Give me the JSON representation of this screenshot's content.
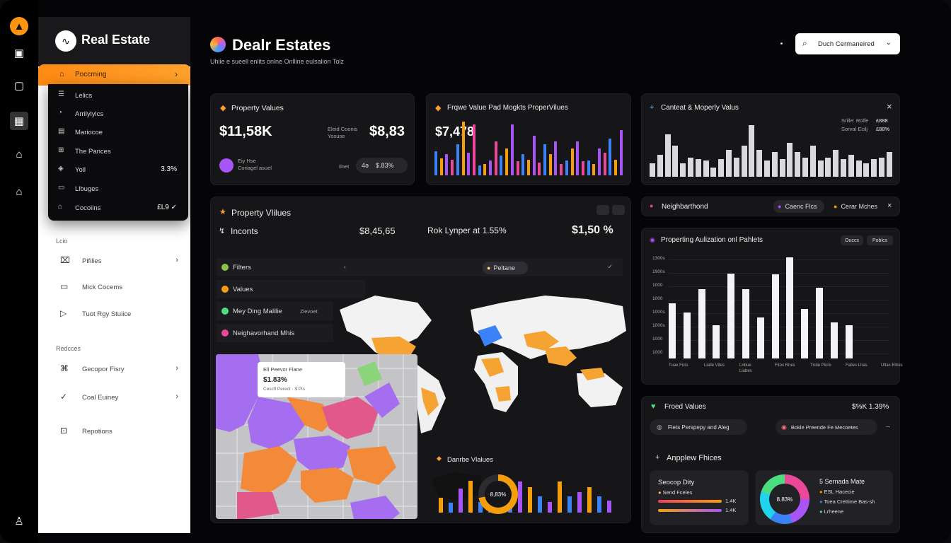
{
  "rail": {
    "icons": [
      "logo-icon",
      "user-card-icon",
      "tablet-icon",
      "calendar-icon",
      "home-icon",
      "house-signal-icon",
      "person-icon"
    ]
  },
  "sidebar": {
    "brand": "Real Estate",
    "active": {
      "label": "Poccrning",
      "chevron": "›"
    },
    "dropdown": [
      {
        "label": "Lelics",
        "value": ""
      },
      {
        "label": "Arrilylylcs",
        "value": ""
      },
      {
        "label": "Mariocoe",
        "value": ""
      },
      {
        "label": "The Pances",
        "value": ""
      },
      {
        "label": "Yoll",
        "value": "3.3%"
      },
      {
        "label": "Llbuges",
        "value": ""
      },
      {
        "label": "Cocoiins",
        "value": "£L9 ✓"
      }
    ],
    "section1": "Lcio",
    "items1": [
      {
        "label": "Pifilies",
        "chevron": "›"
      },
      {
        "label": "Mick Cocems",
        "chevron": ""
      },
      {
        "label": "Tuot Rgy Stuiice",
        "chevron": ""
      }
    ],
    "section2": "Redcces",
    "items2": [
      {
        "label": "Gecopor Fisry",
        "chevron": "›"
      },
      {
        "label": "Coal Euiney",
        "chevron": "›"
      },
      {
        "label": "Repotions",
        "chevron": ""
      }
    ]
  },
  "header": {
    "title": "Dealr Estates",
    "subtitle": "Uhiie e sueell enlits onlne Onlline eulsalion Tolz",
    "search": "Duch Cermaneired"
  },
  "card1": {
    "title": "Property Values",
    "value": "$11,58K",
    "label2": "Eleid Coonis Yosuse",
    "value2": "$8,83",
    "avatar_text": "Eiy Hse\nCoriagel asuel",
    "sub_label": "Ilnet",
    "pill_a": "4ə",
    "pill_b": "$.83%"
  },
  "card2": {
    "title": "Frqwe Value Pad Mogkts ProperVilues",
    "value": "$7,478",
    "bar_values": [
      42,
      30,
      38,
      28,
      55,
      95,
      40,
      90,
      18,
      20,
      26,
      60,
      35,
      48,
      90,
      25,
      38,
      28,
      70,
      22,
      55,
      38,
      60,
      20,
      26,
      48,
      60,
      25,
      26,
      20,
      48,
      40,
      65,
      28,
      80
    ],
    "bar_colors": [
      "#3b82f6",
      "#f59e0b",
      "#a855f7",
      "#ec4899"
    ]
  },
  "card3": {
    "title": "Canteat & Moperly Valus",
    "legend1": "Srille: Rolfe",
    "legend1v": "£888",
    "legend2": "Sorval Ecilj",
    "legend2v": "£88%",
    "bar_values": [
      15,
      25,
      48,
      35,
      15,
      22,
      20,
      18,
      10,
      20,
      30,
      22,
      35,
      58,
      30,
      18,
      28,
      20,
      38,
      28,
      22,
      35,
      18,
      22,
      30,
      20,
      25,
      18,
      15,
      20,
      22,
      28
    ]
  },
  "neighborhood": {
    "label": "Neighbarthond",
    "pill_a": "Caenc Flcs",
    "pill_b": "Cerar Mches"
  },
  "propvals": {
    "title": "Property Vlilues",
    "row_label": "Inconts",
    "row_v1": "$8,45,65",
    "row_mid": "Rok Lynper at 1.55%",
    "row_v2": "$1,50 %"
  },
  "filters": [
    {
      "label": "Filters",
      "color": "#8bc34a",
      "right": "Peltane",
      "right2": "✓"
    },
    {
      "label": "Values",
      "color": "#f59e0b",
      "right": "",
      "right2": ""
    },
    {
      "label": "Mey Ding Malilie",
      "color": "#4ade80",
      "right": "Zlevoet",
      "right2": ""
    },
    {
      "label": "Neighavorhand Mhis",
      "color": "#ec4899",
      "right": "",
      "right2": ""
    }
  ],
  "popup": {
    "title": "Ell Peevor Flane",
    "value": "$1.83%",
    "sub": "Cescfl Perect · $ Pls"
  },
  "donut_card": {
    "title": "Danrbe Vlalues",
    "center": "8,83%",
    "bar_values": [
      28,
      18,
      45,
      60,
      20,
      22,
      55,
      30,
      58,
      48,
      30,
      20,
      58,
      30,
      38,
      48,
      30,
      22
    ],
    "bar_colors": [
      "#f59e0b",
      "#3b82f6",
      "#a855f7"
    ]
  },
  "chart4": {
    "title": "Properting Aulization onl Pahlets",
    "btn1": "Ouccs",
    "btn2": "Poblcs",
    "yticks": [
      "1300s",
      "1900s",
      "1000",
      "1000",
      "1000s",
      "1000s",
      "1000",
      "1000"
    ],
    "xticks": [
      "Tuae Ficis",
      "Lialle Vites",
      "Lnbue Liubes",
      "Fitos Rnes",
      "Tistie Piicis",
      "Falles Lhas",
      "Ultas Eltres"
    ],
    "values": [
      70,
      58,
      88,
      42,
      108,
      88,
      52,
      107,
      128,
      63,
      90,
      46,
      42
    ]
  },
  "trend": {
    "title": "Froed Values",
    "value": "$%K 1.39%",
    "pill_a": "Fiets Perspepy and Aleg",
    "pill_b": "Bokle Preende Fe Mecoetes"
  },
  "anplow": {
    "title": "Anpplew Fhices",
    "left_title": "Seocop Dity",
    "left_label": "Send Fceles",
    "left_v1": "1.4K",
    "left_v2": "1.4K",
    "right_title": "5 Sernada Mate",
    "right_items": [
      "ESL Hacecie",
      "Toea Crettime Bas-sh",
      "Lrheene"
    ],
    "donut_center": "8.83%",
    "donut_colors": [
      "#ec4899",
      "#a855f7",
      "#3b82f6",
      "#22d3ee",
      "#4ade80"
    ]
  }
}
